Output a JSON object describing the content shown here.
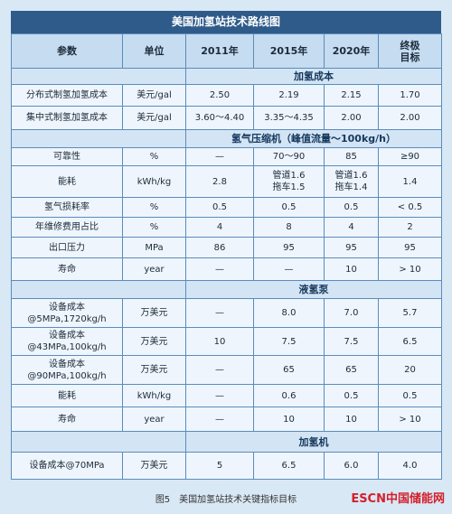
{
  "title": "美国加氢站技术路线图",
  "header": [
    "参数",
    "单位",
    "2011年",
    "2015年",
    "2020年",
    "终极\n目标"
  ],
  "sections": [
    {
      "title": "加氢成本",
      "rows": [
        [
          "分布式制氢加氢成本",
          "美元/gal",
          "2.50",
          "2.19",
          "2.15",
          "1.70"
        ],
        [
          "集中式制氢加氢成本",
          "美元/gal",
          "3.60～4.40",
          "3.35～4.35",
          "2.00",
          "2.00"
        ]
      ]
    },
    {
      "title": "氢气压缩机（峰值流量～100kg/h）",
      "rows": [
        [
          "可靠性",
          "%",
          "—",
          "70～90",
          "85",
          "≥90"
        ],
        [
          "能耗",
          "kWh/kg",
          "2.8",
          "管道1.6\n拖车1.5",
          "管道1.6\n拖车1.4",
          "1.4"
        ],
        [
          "氢气损耗率",
          "%",
          "0.5",
          "0.5",
          "0.5",
          "< 0.5"
        ],
        [
          "年维修费用占比",
          "%",
          "4",
          "8",
          "4",
          "2"
        ],
        [
          "出口压力",
          "MPa",
          "86",
          "95",
          "95",
          "95"
        ],
        [
          "寿命",
          "year",
          "—",
          "—",
          "10",
          "> 10"
        ]
      ]
    },
    {
      "title": "液氢泵",
      "rows": [
        [
          "设备成本\n@5MPa,1720kg/h",
          "万美元",
          "—",
          "8.0",
          "7.0",
          "5.7"
        ],
        [
          "设备成本\n@43MPa,100kg/h",
          "万美元",
          "10",
          "7.5",
          "7.5",
          "6.5"
        ],
        [
          "设备成本\n@90MPa,100kg/h",
          "万美元",
          "—",
          "65",
          "65",
          "20"
        ],
        [
          "能耗",
          "kWh/kg",
          "—",
          "0.6",
          "0.5",
          "0.5"
        ],
        [
          "寿命",
          "year",
          "—",
          "10",
          "10",
          "> 10"
        ]
      ]
    },
    {
      "title": "加氢机",
      "rows": [
        [
          "设备成本@70MPa",
          "万美元",
          "5",
          "6.5",
          "6.0",
          "4.0"
        ]
      ]
    }
  ],
  "caption": "图5　美国加氢站技术关键指标目标",
  "logo": {
    "mark": "ESCN",
    "text": "中国储能网"
  }
}
